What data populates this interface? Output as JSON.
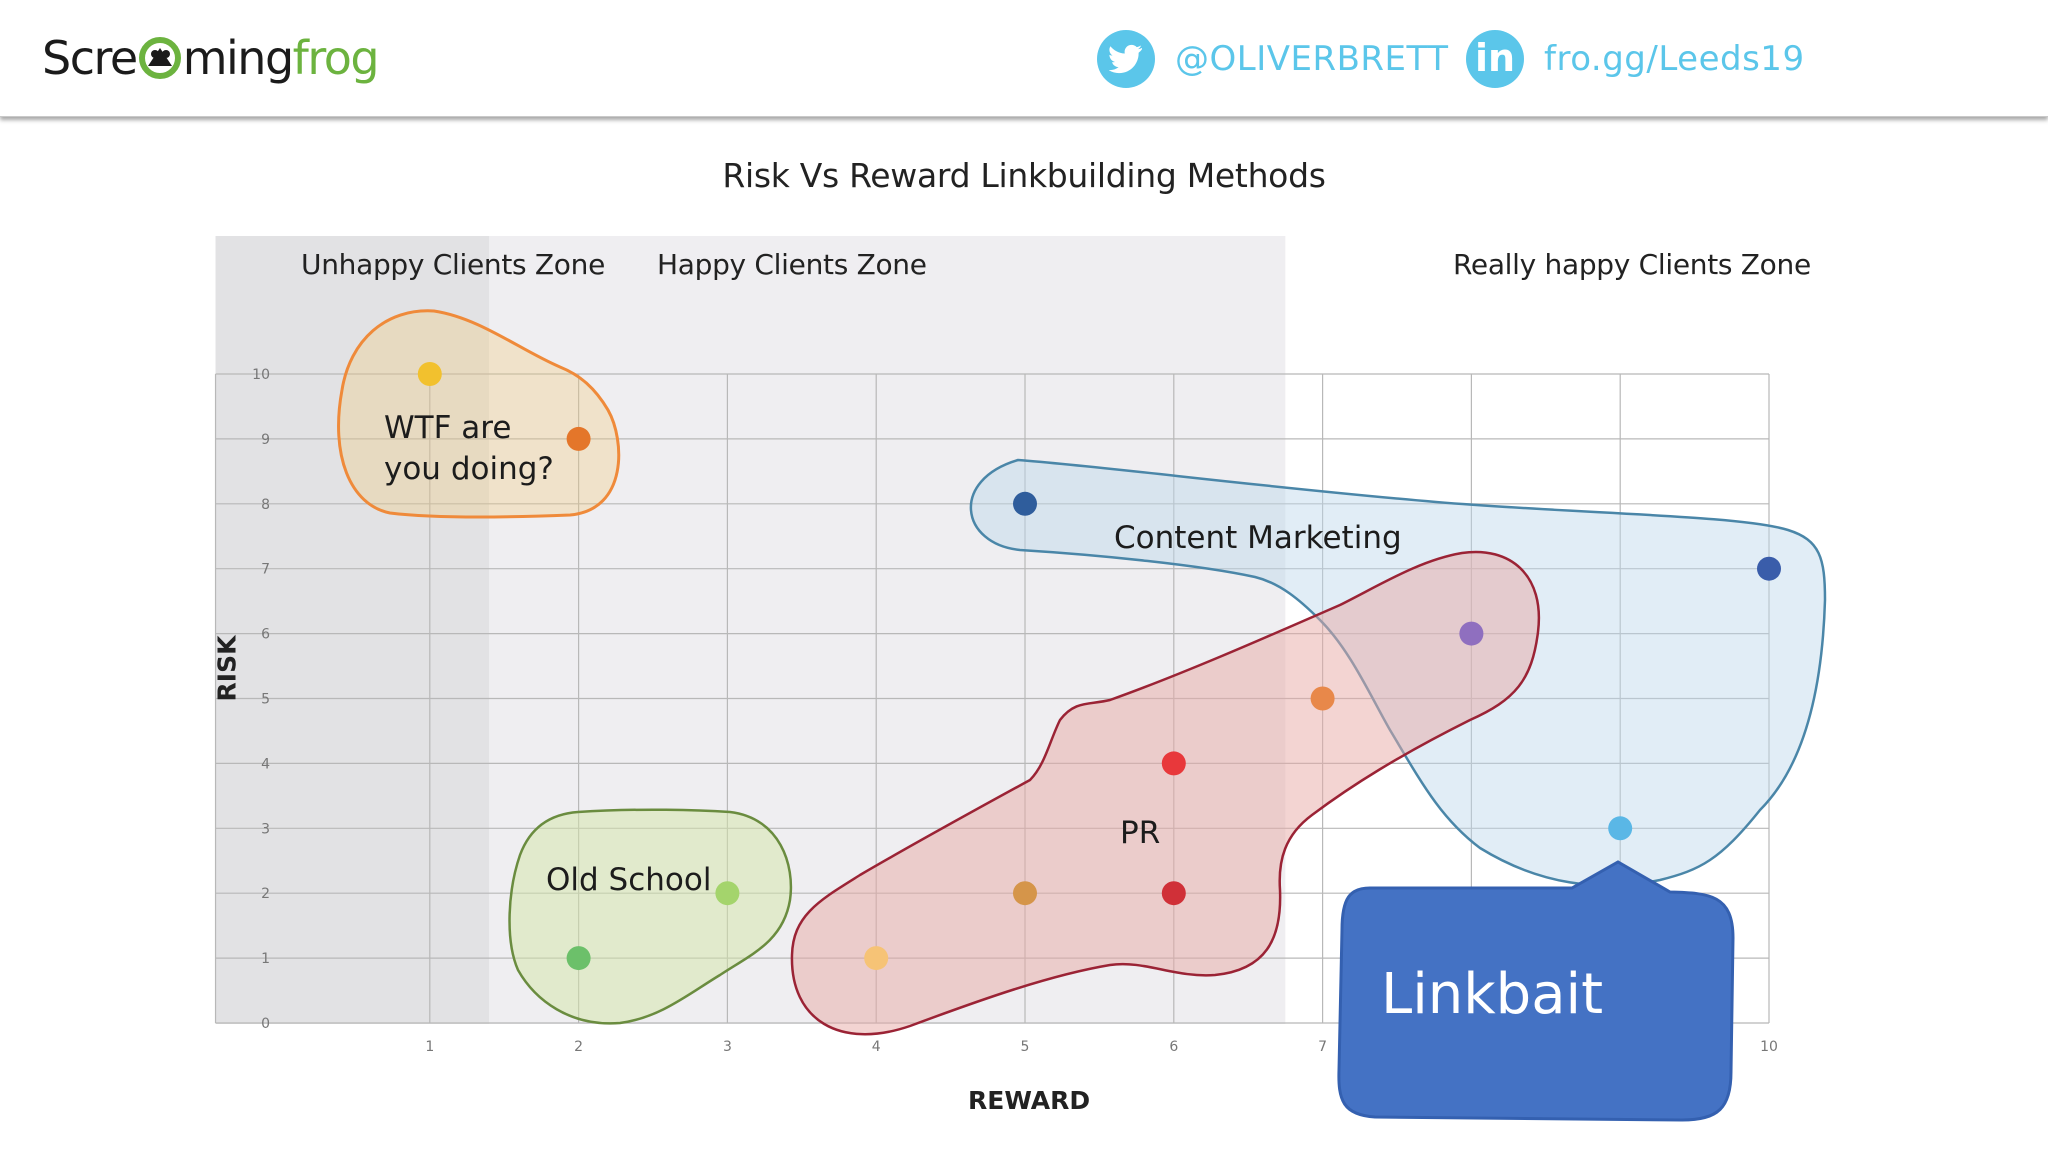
{
  "header": {
    "logo": {
      "part1": "Scre",
      "part2": "ming",
      "part3": "frog"
    },
    "twitter_handle": "@OLIVERBRETT",
    "link_text": "fro.gg/Leeds19",
    "icons": [
      "twitter-bird-icon",
      "linkedin-icon"
    ]
  },
  "colors": {
    "accent_blue": "#5bc6ea",
    "brand_green": "#6cb33f",
    "callout_blue": "#4472c4"
  },
  "chart_data": {
    "type": "scatter",
    "title": "Risk Vs Reward Linkbuilding Methods",
    "xlabel": "REWARD",
    "ylabel": "RISK",
    "xlim": [
      0,
      10
    ],
    "ylim": [
      0,
      10
    ],
    "x_ticks": [
      1,
      2,
      3,
      4,
      5,
      6,
      7,
      10
    ],
    "y_ticks": [
      0,
      1,
      2,
      3,
      4,
      5,
      6,
      7,
      8,
      9,
      10
    ],
    "grid": true,
    "zones": [
      {
        "label": "Unhappy Clients Zone",
        "x_range": [
          -1,
          1.4
        ]
      },
      {
        "label": "Happy Clients Zone",
        "x_range": [
          1.4,
          6.75
        ]
      },
      {
        "label": "Really happy Clients Zone",
        "x_range": [
          6.75,
          10.5
        ]
      }
    ],
    "points": [
      {
        "x": 1,
        "y": 10,
        "color": "#f2c12e"
      },
      {
        "x": 2,
        "y": 9,
        "color": "#e4762a"
      },
      {
        "x": 5,
        "y": 8,
        "color": "#2f5d9c"
      },
      {
        "x": 10,
        "y": 7,
        "color": "#3a5daa"
      },
      {
        "x": 8,
        "y": 6,
        "color": "#8f6fbf"
      },
      {
        "x": 7,
        "y": 5,
        "color": "#e8884a"
      },
      {
        "x": 6,
        "y": 4,
        "color": "#e8383b"
      },
      {
        "x": 9,
        "y": 3,
        "color": "#5ab7e6"
      },
      {
        "x": 3,
        "y": 2,
        "color": "#a4d46c"
      },
      {
        "x": 5,
        "y": 2,
        "color": "#d5954a"
      },
      {
        "x": 6,
        "y": 2,
        "color": "#d03038"
      },
      {
        "x": 2,
        "y": 1,
        "color": "#6cc06a"
      },
      {
        "x": 4,
        "y": 1,
        "color": "#f6c376"
      }
    ],
    "groups": [
      {
        "label_line1": "WTF are",
        "label_line2": "you doing?"
      },
      {
        "label": "Content Marketing"
      },
      {
        "label": "PR"
      },
      {
        "label": "Old School"
      },
      {
        "label": "Linkbait"
      }
    ]
  }
}
